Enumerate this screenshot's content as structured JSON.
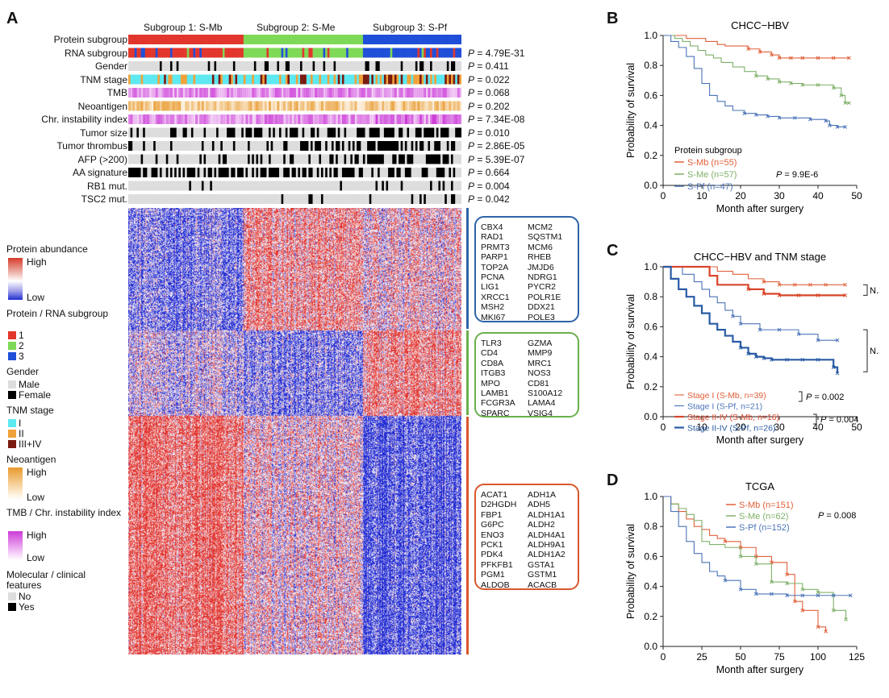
{
  "panels": {
    "A": "A",
    "B": "B",
    "C": "C",
    "D": "D"
  },
  "panelA": {
    "subgroup_titles": [
      "Subgroup 1: S-Mb",
      "Subgroup 2: S-Me",
      "Subgroup 3: S-Pf"
    ],
    "rows": [
      {
        "label": "Protein subgroup",
        "p": ""
      },
      {
        "label": "RNA subgroup",
        "p": "= 4.79E-31"
      },
      {
        "label": "Gender",
        "p": "= 0.411"
      },
      {
        "label": "TNM stage",
        "p": "= 0.022"
      },
      {
        "label": "TMB",
        "p": "= 0.068"
      },
      {
        "label": "Neoantigen",
        "p": "= 0.202"
      },
      {
        "label": "Chr. instability index",
        "p": "= 7.34E-08"
      },
      {
        "label": "Tumor size",
        "p": "= 0.010"
      },
      {
        "label": "Tumor thrombus",
        "p": "= 2.86E-05"
      },
      {
        "label": "AFP (>200)",
        "p": "= 5.39E-07"
      },
      {
        "label": "AA signature",
        "p": "= 0.664"
      },
      {
        "label": "RB1 mut.",
        "p": "= 0.004"
      },
      {
        "label": "TSC2 mut.",
        "p": "= 0.042"
      }
    ],
    "p_letter": "P",
    "legend": {
      "protein_abundance": "Protein abundance",
      "high": "High",
      "low": "Low",
      "subgroup_title": "Protein / RNA subgroup",
      "sub1": "1",
      "sub2": "2",
      "sub3": "3",
      "gender_title": "Gender",
      "male": "Male",
      "female": "Female",
      "tnm_title": "TNM stage",
      "tnm1": "I",
      "tnm2": "II",
      "tnm3": "III+IV",
      "neo_title": "Neoantigen",
      "neo_high": "High",
      "neo_low": "Low",
      "tmb_title": "TMB / Chr. instability index",
      "tmb_high": "High",
      "tmb_low": "Low",
      "mol_title": "Molecular / clinical features",
      "no": "No",
      "yes": "Yes"
    },
    "gene_boxes": [
      {
        "color": "#2f62a8",
        "genes": [
          "CBX4",
          "MCM2",
          "RAD1",
          "SQSTM1",
          "PRMT3",
          "MCM6",
          "PARP1",
          "RHEB",
          "TOP2A",
          "JMJD6",
          "PCNA",
          "NDRG1",
          "LIG1",
          "PYCR2",
          "XRCC1",
          "POLR1E",
          "MSH2",
          "DDX21",
          "MKI67",
          "POLE3"
        ]
      },
      {
        "color": "#6ab04c",
        "genes": [
          "TLR3",
          "GZMA",
          "CD4",
          "MMP9",
          "CD8A",
          "MRC1",
          "ITGB3",
          "NOS3",
          "MPO",
          "CD81",
          "LAMB1",
          "S100A12",
          "FCGR3A",
          "LAMA4",
          "SPARC",
          "VSIG4"
        ]
      },
      {
        "color": "#d9572b",
        "genes": [
          "ACAT1",
          "ADH1A",
          "D2HGDH",
          "ADH5",
          "FBP1",
          "ALDH1A1",
          "G6PC",
          "ALDH2",
          "ENO3",
          "ALDH4A1",
          "PCK1",
          "ALDH9A1",
          "PDK4",
          "ALDH1A2",
          "PFKFB1",
          "GSTA1",
          "PGM1",
          "GSTM1",
          "ALDOB",
          "ACACB"
        ]
      }
    ],
    "colors": {
      "sub1": "#e2362c",
      "sub2": "#7ed957",
      "sub3": "#1f4fd8",
      "tnm1": "#5ee8f0",
      "tnm2": "#f0a23a",
      "tnm3": "#7a1a10",
      "no": "#dddddd",
      "yes": "#000000"
    }
  },
  "chart_data": [
    {
      "panel": "B",
      "type": "line",
      "title": "CHCC−HBV",
      "xlabel": "Month after surgery",
      "ylabel": "Probability of survival",
      "xlim": [
        0,
        50
      ],
      "ylim": [
        0,
        1.0
      ],
      "xticks": [
        0,
        10,
        20,
        30,
        40,
        50
      ],
      "yticks": [
        0,
        0.2,
        0.4,
        0.6,
        0.8,
        1.0
      ],
      "ytick_labels": [
        "0.0",
        "0.2",
        "0.4",
        "0.6",
        "0.8",
        "1.0"
      ],
      "legend_title": "Protein subgroup",
      "annotation": "= 9.9E-6",
      "series": [
        {
          "name": "S-Mb (n=55)",
          "color": "#e0603a",
          "x": [
            0,
            3,
            6,
            8,
            11,
            14,
            16,
            19,
            22,
            25,
            28,
            30,
            33,
            36,
            40,
            44,
            48
          ],
          "y": [
            1.0,
            1.0,
            0.98,
            0.98,
            0.96,
            0.94,
            0.93,
            0.93,
            0.91,
            0.89,
            0.87,
            0.85,
            0.85,
            0.85,
            0.85,
            0.85,
            0.85
          ]
        },
        {
          "name": "S-Me (n=57)",
          "color": "#7fb069",
          "x": [
            0,
            3,
            5,
            7,
            9,
            11,
            13,
            15,
            18,
            21,
            24,
            27,
            30,
            33,
            36,
            40,
            44,
            46,
            47,
            48
          ],
          "y": [
            1.0,
            0.98,
            0.96,
            0.93,
            0.9,
            0.87,
            0.85,
            0.82,
            0.79,
            0.76,
            0.73,
            0.71,
            0.69,
            0.68,
            0.67,
            0.67,
            0.65,
            0.6,
            0.55,
            0.55
          ]
        },
        {
          "name": "S-Pf (n=47)",
          "color": "#4b74b8",
          "x": [
            0,
            2,
            4,
            6,
            8,
            10,
            12,
            14,
            16,
            18,
            21,
            24,
            27,
            30,
            34,
            38,
            42,
            43,
            45,
            47
          ],
          "y": [
            1.0,
            0.96,
            0.92,
            0.86,
            0.78,
            0.68,
            0.6,
            0.56,
            0.53,
            0.5,
            0.48,
            0.47,
            0.46,
            0.45,
            0.45,
            0.44,
            0.43,
            0.4,
            0.39,
            0.39
          ]
        }
      ]
    },
    {
      "panel": "C",
      "type": "line",
      "title": "CHCC−HBV and TNM stage",
      "xlabel": "Month after surgery",
      "ylabel": "Probability of survival",
      "xlim": [
        0,
        50
      ],
      "ylim": [
        0,
        1.0
      ],
      "xticks": [
        0,
        10,
        20,
        30,
        40,
        50
      ],
      "yticks": [
        0,
        0.2,
        0.4,
        0.6,
        0.8,
        1.0
      ],
      "ytick_labels": [
        "0.0",
        "0.2",
        "0.4",
        "0.6",
        "0.8",
        "1.0"
      ],
      "annotations": [
        "N.S.",
        "N.S.",
        "= 0.002",
        "= 0.004"
      ],
      "series": [
        {
          "name": "Stage I (S-Mb, n=39)",
          "color": "#e0603a",
          "x": [
            0,
            10,
            14,
            18,
            22,
            26,
            30,
            34,
            38,
            42,
            47
          ],
          "y": [
            1.0,
            1.0,
            0.97,
            0.95,
            0.92,
            0.9,
            0.88,
            0.88,
            0.88,
            0.88,
            0.88
          ]
        },
        {
          "name": "Stage I (S-Pf, n=21)",
          "color": "#4b74b8",
          "x": [
            0,
            5,
            8,
            10,
            12,
            14,
            16,
            18,
            20,
            25,
            30,
            35,
            40,
            45
          ],
          "y": [
            1.0,
            0.95,
            0.9,
            0.85,
            0.8,
            0.76,
            0.71,
            0.67,
            0.62,
            0.58,
            0.58,
            0.55,
            0.51,
            0.51
          ]
        },
        {
          "name": "Stage II-IV (S-Mb, n=16)",
          "color": "#d9452b",
          "x": [
            0,
            10,
            12,
            14,
            18,
            22,
            26,
            30,
            35,
            40,
            47
          ],
          "y": [
            1.0,
            1.0,
            0.94,
            0.88,
            0.88,
            0.85,
            0.82,
            0.81,
            0.81,
            0.81,
            0.81
          ]
        },
        {
          "name": "Stage II-IV (S-Pf, n=26)",
          "color": "#2a5ba5",
          "x": [
            0,
            2,
            4,
            6,
            8,
            10,
            12,
            14,
            16,
            18,
            20,
            22,
            24,
            26,
            28,
            32,
            36,
            40,
            44,
            45
          ],
          "y": [
            1.0,
            0.92,
            0.85,
            0.8,
            0.74,
            0.69,
            0.62,
            0.58,
            0.54,
            0.5,
            0.46,
            0.42,
            0.4,
            0.39,
            0.38,
            0.38,
            0.38,
            0.38,
            0.33,
            0.29
          ]
        }
      ]
    },
    {
      "panel": "D",
      "type": "line",
      "title": "TCGA",
      "xlabel": "Month after surgery",
      "ylabel": "Probability of survival",
      "xlim": [
        0,
        125
      ],
      "ylim": [
        0,
        1.0
      ],
      "xticks": [
        0,
        25,
        50,
        75,
        100,
        125
      ],
      "yticks": [
        0,
        0.2,
        0.4,
        0.6,
        0.8,
        1.0
      ],
      "ytick_labels": [
        "0.0",
        "0.2",
        "0.4",
        "0.6",
        "0.8",
        "1.0"
      ],
      "annotation": "= 0.008",
      "series": [
        {
          "name": "S-Mb (n=151)",
          "color": "#e0603a",
          "x": [
            0,
            5,
            10,
            15,
            20,
            25,
            30,
            35,
            40,
            50,
            60,
            70,
            80,
            85,
            90,
            100,
            105
          ],
          "y": [
            1.0,
            0.95,
            0.9,
            0.85,
            0.8,
            0.78,
            0.74,
            0.72,
            0.7,
            0.66,
            0.6,
            0.56,
            0.48,
            0.3,
            0.24,
            0.13,
            0.1
          ]
        },
        {
          "name": "S-Me (n=62)",
          "color": "#7fb069",
          "x": [
            0,
            5,
            10,
            15,
            20,
            25,
            30,
            40,
            50,
            60,
            70,
            80,
            90,
            100,
            110,
            118
          ],
          "y": [
            1.0,
            0.95,
            0.92,
            0.88,
            0.84,
            0.7,
            0.68,
            0.66,
            0.6,
            0.55,
            0.43,
            0.42,
            0.38,
            0.36,
            0.24,
            0.18
          ]
        },
        {
          "name": "S-Pf (n=152)",
          "color": "#4b74b8",
          "x": [
            0,
            5,
            10,
            15,
            20,
            25,
            30,
            35,
            40,
            50,
            60,
            70,
            80,
            90,
            100,
            110,
            121
          ],
          "y": [
            1.0,
            0.9,
            0.8,
            0.7,
            0.62,
            0.56,
            0.5,
            0.47,
            0.44,
            0.38,
            0.35,
            0.35,
            0.34,
            0.34,
            0.34,
            0.34,
            0.34
          ]
        }
      ]
    }
  ]
}
